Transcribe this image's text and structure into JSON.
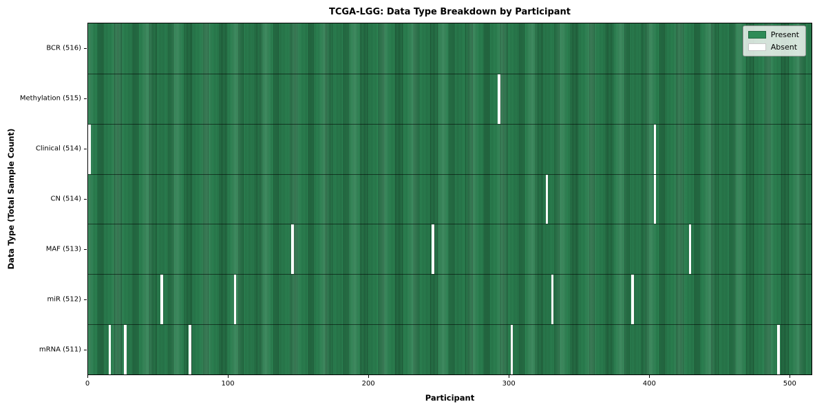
{
  "chart_data": {
    "type": "heatmap",
    "title": "TCGA-LGG: Data Type Breakdown by Participant",
    "xlabel": "Participant",
    "ylabel": "Data Type (Total Sample Count)",
    "x_ticks": [
      0,
      100,
      200,
      300,
      400,
      500
    ],
    "x_range": [
      0,
      516
    ],
    "total_participants": 516,
    "grid": false,
    "legend": {
      "position": "upper right",
      "entries": [
        {
          "label": "Present",
          "color": "#2e8b57"
        },
        {
          "label": "Absent",
          "color": "#ffffff"
        }
      ]
    },
    "colors": {
      "present": "#2e8b57",
      "cell_edge": "#1a4a2e",
      "absent": "#ffffff",
      "row_separator": "#0a0a0a"
    },
    "rows": [
      {
        "label": "BCR (516)",
        "data_type": "BCR",
        "present_count": 516,
        "absent_participants": []
      },
      {
        "label": "Methylation (515)",
        "data_type": "Methylation",
        "present_count": 515,
        "absent_participants": [
          292
        ]
      },
      {
        "label": "Clinical (514)",
        "data_type": "Clinical",
        "present_count": 514,
        "absent_participants": [
          0,
          403
        ]
      },
      {
        "label": "CN (514)",
        "data_type": "CN",
        "present_count": 514,
        "absent_participants": [
          326,
          403
        ]
      },
      {
        "label": "MAF (513)",
        "data_type": "MAF",
        "present_count": 513,
        "absent_participants": [
          145,
          245,
          428
        ]
      },
      {
        "label": "miR (512)",
        "data_type": "miR",
        "present_count": 512,
        "absent_participants": [
          52,
          104,
          330,
          387
        ]
      },
      {
        "label": "mRNA (511)",
        "data_type": "mRNA",
        "present_count": 511,
        "absent_participants": [
          15,
          26,
          72,
          301,
          491
        ]
      }
    ]
  }
}
